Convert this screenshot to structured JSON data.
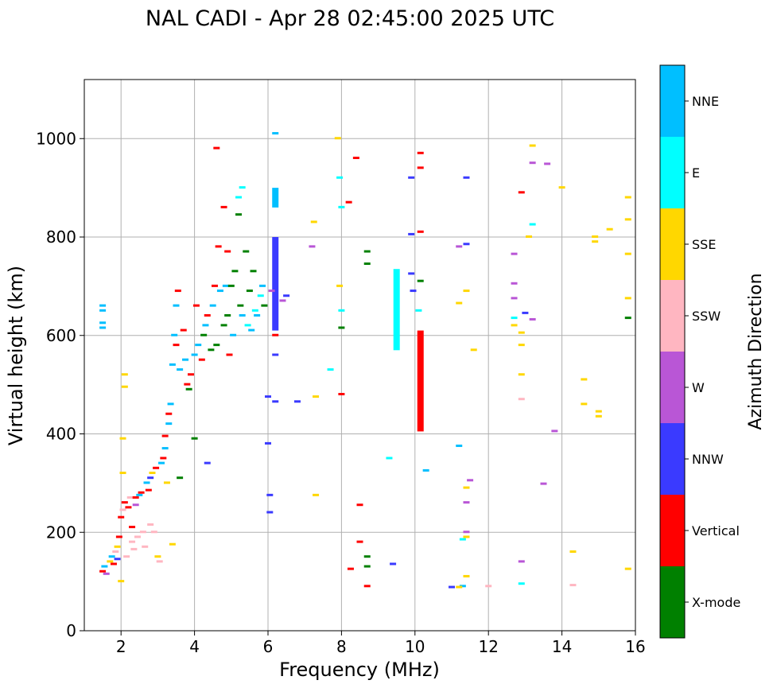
{
  "chart_data": {
    "type": "scatter",
    "title": "NAL CADI - Apr 28 02:45:00 2025 UTC",
    "xlabel": "Frequency (MHz)",
    "ylabel": "Virtual height (km)",
    "xlim": [
      1,
      16
    ],
    "ylim": [
      0,
      1120
    ],
    "xticks": [
      2,
      4,
      6,
      8,
      10,
      12,
      14,
      16
    ],
    "yticks": [
      0,
      200,
      400,
      600,
      800,
      1000
    ],
    "grid": true,
    "colorbar": {
      "title": "Azimuth Direction",
      "categories": [
        {
          "name": "X-mode",
          "color": "#008000"
        },
        {
          "name": "Vertical",
          "color": "#ff0000"
        },
        {
          "name": "NNW",
          "color": "#3a3aff"
        },
        {
          "name": "W",
          "color": "#b956d6"
        },
        {
          "name": "SSW",
          "color": "#ffb6c1"
        },
        {
          "name": "SSE",
          "color": "#ffd700"
        },
        {
          "name": "E",
          "color": "#00ffff"
        },
        {
          "name": "NNE",
          "color": "#00bfff"
        }
      ]
    },
    "columns": [
      {
        "name": "Vertical",
        "x": 10.15,
        "ymin": 405,
        "ymax": 610
      },
      {
        "name": "E",
        "x": 9.5,
        "ymin": 570,
        "ymax": 735
      },
      {
        "name": "NNW",
        "x": 6.2,
        "ymin": 610,
        "ymax": 800
      },
      {
        "name": "NNE",
        "x": 6.2,
        "ymin": 860,
        "ymax": 900
      }
    ],
    "points": [
      [
        "Vertical",
        1.5,
        120
      ],
      [
        "NNE",
        1.55,
        130
      ],
      [
        "W",
        1.6,
        115
      ],
      [
        "SSE",
        1.7,
        140
      ],
      [
        "NNE",
        1.75,
        150
      ],
      [
        "Vertical",
        1.8,
        135
      ],
      [
        "SSW",
        1.85,
        160
      ],
      [
        "SSE",
        1.9,
        170
      ],
      [
        "NNW",
        1.9,
        145
      ],
      [
        "Vertical",
        1.95,
        190
      ],
      [
        "SSE",
        2.0,
        100
      ],
      [
        "Vertical",
        2.0,
        230
      ],
      [
        "SSW",
        2.05,
        245
      ],
      [
        "Vertical",
        2.1,
        260
      ],
      [
        "SSE",
        2.05,
        320
      ],
      [
        "SSE",
        2.05,
        390
      ],
      [
        "SSE",
        2.1,
        495
      ],
      [
        "SSE",
        2.1,
        520
      ],
      [
        "SSW",
        2.15,
        150
      ],
      [
        "Vertical",
        2.2,
        250
      ],
      [
        "SSW",
        2.25,
        270
      ],
      [
        "Vertical",
        2.3,
        210
      ],
      [
        "SSW",
        2.3,
        180
      ],
      [
        "SSW",
        2.35,
        165
      ],
      [
        "Vertical",
        2.4,
        270
      ],
      [
        "W",
        2.4,
        255
      ],
      [
        "SSW",
        2.45,
        190
      ],
      [
        "NNE",
        2.5,
        275
      ],
      [
        "Vertical",
        2.55,
        280
      ],
      [
        "SSW",
        2.6,
        200
      ],
      [
        "SSW",
        2.65,
        170
      ],
      [
        "NNE",
        2.7,
        300
      ],
      [
        "Vertical",
        2.75,
        285
      ],
      [
        "NNW",
        2.8,
        310
      ],
      [
        "SSE",
        2.85,
        320
      ],
      [
        "SSW",
        2.8,
        215
      ],
      [
        "SSW",
        2.9,
        200
      ],
      [
        "Vertical",
        2.95,
        330
      ],
      [
        "SSE",
        3.0,
        150
      ],
      [
        "SSW",
        3.05,
        140
      ],
      [
        "NNE",
        3.1,
        340
      ],
      [
        "Vertical",
        3.15,
        350
      ],
      [
        "NNE",
        3.2,
        370
      ],
      [
        "Vertical",
        3.2,
        395
      ],
      [
        "SSE",
        3.25,
        300
      ],
      [
        "NNE",
        3.3,
        420
      ],
      [
        "Vertical",
        3.3,
        440
      ],
      [
        "NNE",
        3.35,
        460
      ],
      [
        "SSE",
        3.4,
        175
      ],
      [
        "NNE",
        3.4,
        540
      ],
      [
        "NNE",
        3.45,
        600
      ],
      [
        "Vertical",
        3.5,
        580
      ],
      [
        "NNE",
        3.5,
        660
      ],
      [
        "Vertical",
        3.55,
        690
      ],
      [
        "X-mode",
        3.6,
        310
      ],
      [
        "NNE",
        3.6,
        530
      ],
      [
        "Vertical",
        3.7,
        610
      ],
      [
        "NNE",
        3.75,
        550
      ],
      [
        "Vertical",
        3.8,
        500
      ],
      [
        "X-mode",
        3.85,
        490
      ],
      [
        "Vertical",
        3.9,
        520
      ],
      [
        "X-mode",
        4.0,
        390
      ],
      [
        "NNE",
        4.0,
        560
      ],
      [
        "Vertical",
        4.05,
        660
      ],
      [
        "NNE",
        4.1,
        580
      ],
      [
        "Vertical",
        4.2,
        550
      ],
      [
        "X-mode",
        4.25,
        600
      ],
      [
        "NNE",
        4.3,
        620
      ],
      [
        "Vertical",
        4.35,
        640
      ],
      [
        "NNW",
        4.35,
        340
      ],
      [
        "X-mode",
        4.45,
        570
      ],
      [
        "NNE",
        4.5,
        660
      ],
      [
        "Vertical",
        4.55,
        700
      ],
      [
        "X-mode",
        4.6,
        580
      ],
      [
        "Vertical",
        4.65,
        780
      ],
      [
        "NNE",
        4.7,
        690
      ],
      [
        "X-mode",
        4.8,
        620
      ],
      [
        "Vertical",
        4.8,
        860
      ],
      [
        "NNE",
        4.85,
        700
      ],
      [
        "X-mode",
        4.9,
        640
      ],
      [
        "Vertical",
        4.95,
        560
      ],
      [
        "X-mode",
        5.0,
        700
      ],
      [
        "NNE",
        5.05,
        600
      ],
      [
        "X-mode",
        5.1,
        730
      ],
      [
        "E",
        5.2,
        880
      ],
      [
        "X-mode",
        5.25,
        660
      ],
      [
        "NNE",
        5.3,
        640
      ],
      [
        "X-mode",
        5.4,
        770
      ],
      [
        "E",
        5.45,
        620
      ],
      [
        "X-mode",
        5.5,
        690
      ],
      [
        "NNE",
        5.55,
        610
      ],
      [
        "X-mode",
        5.6,
        730
      ],
      [
        "E",
        5.65,
        650
      ],
      [
        "NNE",
        5.7,
        640
      ],
      [
        "E",
        5.8,
        680
      ],
      [
        "NNE",
        5.85,
        700
      ],
      [
        "X-mode",
        5.9,
        660
      ],
      [
        "Vertical",
        4.6,
        980
      ],
      [
        "E",
        5.3,
        900
      ],
      [
        "X-mode",
        5.2,
        845
      ],
      [
        "Vertical",
        4.9,
        770
      ],
      [
        "NNW",
        6.0,
        475
      ],
      [
        "NNW",
        6.0,
        380
      ],
      [
        "NNW",
        6.05,
        240
      ],
      [
        "NNW",
        6.05,
        275
      ],
      [
        "W",
        6.1,
        690
      ],
      [
        "NNW",
        6.2,
        560
      ],
      [
        "Vertical",
        6.2,
        600
      ],
      [
        "NNW",
        6.2,
        465
      ],
      [
        "NNE",
        6.2,
        1010
      ],
      [
        "W",
        6.4,
        670
      ],
      [
        "NNW",
        6.5,
        680
      ],
      [
        "NNW",
        6.8,
        465
      ],
      [
        "W",
        7.2,
        780
      ],
      [
        "SSE",
        7.25,
        830
      ],
      [
        "SSE",
        7.3,
        275
      ],
      [
        "SSE",
        7.3,
        475
      ],
      [
        "E",
        7.7,
        530
      ],
      [
        "SSE",
        7.9,
        1000
      ],
      [
        "SSE",
        7.95,
        700
      ],
      [
        "E",
        7.95,
        920
      ],
      [
        "E",
        8.0,
        860
      ],
      [
        "E",
        8.0,
        650
      ],
      [
        "X-mode",
        8.0,
        615
      ],
      [
        "Vertical",
        8.0,
        480
      ],
      [
        "Vertical",
        8.2,
        870
      ],
      [
        "Vertical",
        8.4,
        960
      ],
      [
        "Vertical",
        8.25,
        125
      ],
      [
        "Vertical",
        8.5,
        255
      ],
      [
        "Vertical",
        8.5,
        180
      ],
      [
        "X-mode",
        8.7,
        150
      ],
      [
        "X-mode",
        8.7,
        130
      ],
      [
        "Vertical",
        8.7,
        90
      ],
      [
        "X-mode",
        8.7,
        770
      ],
      [
        "X-mode",
        8.7,
        745
      ],
      [
        "NNW",
        9.4,
        135
      ],
      [
        "E",
        9.3,
        350
      ],
      [
        "NNW",
        9.9,
        920
      ],
      [
        "NNW",
        9.9,
        805
      ],
      [
        "NNW",
        9.9,
        725
      ],
      [
        "NNW",
        9.95,
        690
      ],
      [
        "Vertical",
        10.15,
        970
      ],
      [
        "Vertical",
        10.15,
        940
      ],
      [
        "Vertical",
        10.15,
        810
      ],
      [
        "X-mode",
        10.15,
        710
      ],
      [
        "NNE",
        10.3,
        325
      ],
      [
        "E",
        10.1,
        650
      ],
      [
        "SSE",
        11.2,
        665
      ],
      [
        "SSE",
        11.4,
        690
      ],
      [
        "W",
        11.2,
        780
      ],
      [
        "NNE",
        11.2,
        375
      ],
      [
        "E",
        11.3,
        185
      ],
      [
        "SSE",
        11.4,
        190
      ],
      [
        "W",
        11.4,
        200
      ],
      [
        "W",
        11.4,
        260
      ],
      [
        "W",
        11.5,
        305
      ],
      [
        "SSE",
        11.4,
        290
      ],
      [
        "SSE",
        11.4,
        110
      ],
      [
        "NNW",
        11.4,
        920
      ],
      [
        "NNW",
        11.4,
        785
      ],
      [
        "SSE",
        11.6,
        570
      ],
      [
        "NNE",
        11.3,
        90
      ],
      [
        "SSE",
        11.2,
        88
      ],
      [
        "NNW",
        11.0,
        88
      ],
      [
        "SSW",
        12.0,
        90
      ],
      [
        "W",
        12.7,
        765
      ],
      [
        "W",
        12.7,
        705
      ],
      [
        "W",
        12.7,
        675
      ],
      [
        "E",
        12.7,
        635
      ],
      [
        "SSE",
        12.7,
        620
      ],
      [
        "SSE",
        12.9,
        605
      ],
      [
        "SSE",
        12.9,
        580
      ],
      [
        "SSE",
        12.9,
        520
      ],
      [
        "SSW",
        12.9,
        470
      ],
      [
        "W",
        12.9,
        140
      ],
      [
        "E",
        12.9,
        95
      ],
      [
        "Vertical",
        12.9,
        890
      ],
      [
        "SSE",
        13.1,
        800
      ],
      [
        "E",
        13.2,
        825
      ],
      [
        "SSE",
        13.2,
        985
      ],
      [
        "W",
        13.2,
        950
      ],
      [
        "W",
        13.2,
        632
      ],
      [
        "NNW",
        13.0,
        645
      ],
      [
        "W",
        13.5,
        298
      ],
      [
        "W",
        13.6,
        948
      ],
      [
        "W",
        13.8,
        405
      ],
      [
        "SSE",
        14.0,
        900
      ],
      [
        "SSE",
        14.3,
        160
      ],
      [
        "SSW",
        14.3,
        92
      ],
      [
        "SSE",
        14.6,
        510
      ],
      [
        "SSE",
        14.6,
        460
      ],
      [
        "SSE",
        14.9,
        800
      ],
      [
        "SSE",
        14.9,
        790
      ],
      [
        "SSE",
        15.0,
        445
      ],
      [
        "SSE",
        15.0,
        435
      ],
      [
        "SSE",
        15.3,
        815
      ],
      [
        "SSE",
        15.8,
        880
      ],
      [
        "SSE",
        15.8,
        835
      ],
      [
        "SSE",
        15.8,
        765
      ],
      [
        "SSE",
        15.8,
        675
      ],
      [
        "X-mode",
        15.8,
        635
      ],
      [
        "SSE",
        15.8,
        125
      ],
      [
        "NNE",
        1.5,
        625
      ],
      [
        "NNE",
        1.5,
        615
      ],
      [
        "NNE",
        1.5,
        650
      ],
      [
        "NNE",
        1.5,
        660
      ]
    ]
  }
}
